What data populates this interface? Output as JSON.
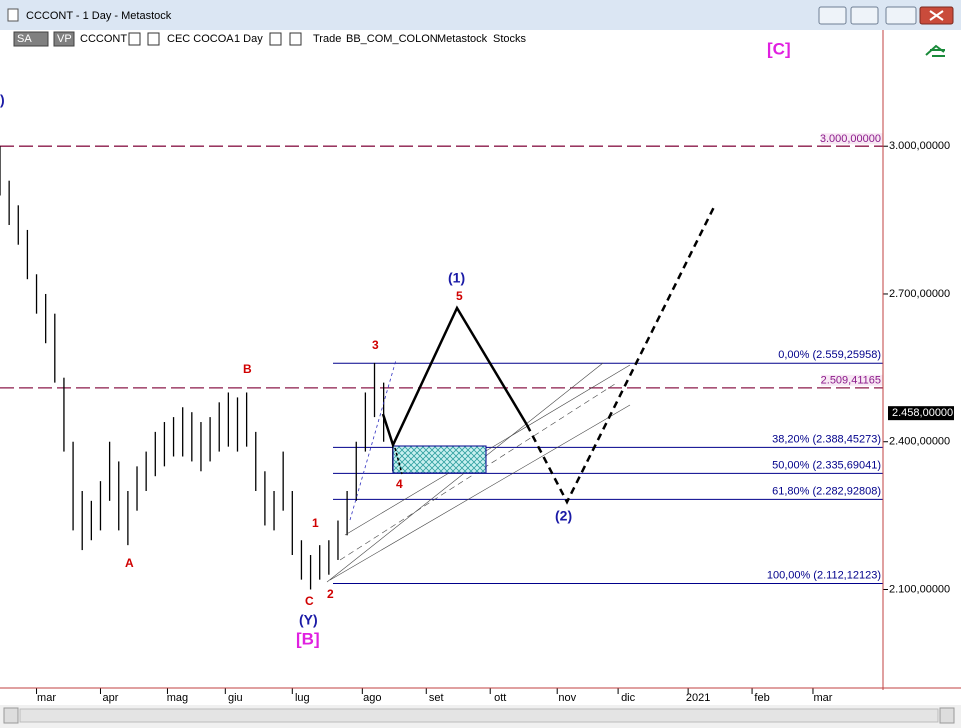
{
  "window": {
    "title": "CCCONT - 1 Day - Metastock"
  },
  "toolbar": {
    "items": [
      "SA",
      "VP",
      "CCCONT",
      "CEC COCOA",
      "1 Day",
      "Trade",
      "BB_COM_COLON",
      "Metastock",
      "Stocks"
    ]
  },
  "chart_data": {
    "type": "range",
    "color": "#000000",
    "x": [
      -12,
      -9,
      -6,
      -3,
      0,
      3,
      6,
      9,
      12,
      15,
      18,
      21,
      24,
      27,
      30,
      33,
      36,
      39,
      42,
      45,
      48,
      51,
      54,
      57,
      60,
      63,
      66,
      69,
      72,
      75,
      78,
      81,
      84,
      87,
      90,
      93,
      96,
      99,
      102,
      105,
      108,
      111,
      114,
      117
    ],
    "high": [
      3.0,
      2.93,
      2.88,
      2.83,
      2.74,
      2.7,
      2.66,
      2.53,
      2.4,
      2.3,
      2.28,
      2.32,
      2.4,
      2.36,
      2.3,
      2.35,
      2.38,
      2.42,
      2.44,
      2.45,
      2.47,
      2.46,
      2.44,
      2.45,
      2.48,
      2.5,
      2.49,
      2.5,
      2.42,
      2.34,
      2.3,
      2.38,
      2.3,
      2.2,
      2.17,
      2.19,
      2.2,
      2.24,
      2.3,
      2.4,
      2.5,
      2.56,
      2.52,
      2.4
    ],
    "low": [
      2.9,
      2.84,
      2.8,
      2.73,
      2.66,
      2.6,
      2.52,
      2.38,
      2.22,
      2.18,
      2.2,
      2.22,
      2.28,
      2.22,
      2.19,
      2.26,
      2.3,
      2.33,
      2.35,
      2.37,
      2.37,
      2.36,
      2.34,
      2.36,
      2.38,
      2.39,
      2.38,
      2.39,
      2.3,
      2.23,
      2.22,
      2.26,
      2.17,
      2.12,
      2.1,
      2.12,
      2.13,
      2.16,
      2.21,
      2.28,
      2.38,
      2.45,
      2.4,
      2.34
    ],
    "xlim": [
      -12,
      278
    ],
    "xticks": [
      {
        "value": 0,
        "label": "mar"
      },
      {
        "value": 21,
        "label": "apr"
      },
      {
        "value": 43,
        "label": "mag"
      },
      {
        "value": 62,
        "label": "giu"
      },
      {
        "value": 84,
        "label": "lug"
      },
      {
        "value": 107,
        "label": "ago"
      },
      {
        "value": 128,
        "label": "set"
      },
      {
        "value": 149,
        "label": "ott"
      },
      {
        "value": 171,
        "label": "nov"
      },
      {
        "value": 191,
        "label": "dic"
      },
      {
        "value": 214,
        "label": "2021"
      },
      {
        "value": 235,
        "label": "feb"
      },
      {
        "value": 255,
        "label": "mar"
      }
    ],
    "ylim": [
      1.9,
      3.24
    ],
    "yticks": [
      {
        "value": 2.1,
        "label": "2.100,00000"
      },
      {
        "value": 2.4,
        "label": "2.400,00000"
      },
      {
        "value": 2.7,
        "label": "2.700,00000"
      },
      {
        "value": 3.0,
        "label": "3.000,00000"
      }
    ],
    "last_price": {
      "value": 2.458,
      "label": "2.458,00000"
    },
    "fib_levels": [
      {
        "value": 2.55925958,
        "label": "0,00% (2.559,25958)"
      },
      {
        "value": 2.38845273,
        "label": "38,20% (2.388,45273)"
      },
      {
        "value": 2.33569041,
        "label": "50,00% (2.335,69041)"
      },
      {
        "value": 2.28292808,
        "label": "61,80% (2.282,92808)"
      },
      {
        "value": 2.11212123,
        "label": "100,00% (2.112,12123)"
      }
    ],
    "hlines": [
      {
        "value": 3.0,
        "label": "3.000,00000"
      },
      {
        "value": 2.50941165,
        "label": "2.509,41165"
      }
    ],
    "annotations": [
      "[C]",
      ")",
      "(1)",
      "5",
      "3",
      "B",
      "A",
      "4",
      "(2)",
      "1",
      "2",
      "C",
      "(Y)",
      "[B]"
    ]
  }
}
